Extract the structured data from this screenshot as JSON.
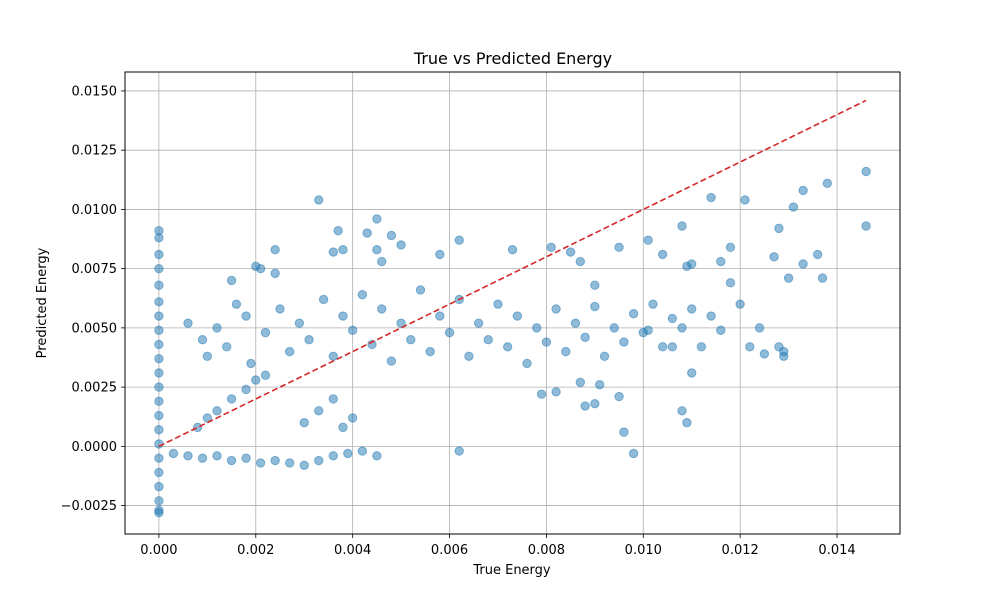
{
  "chart_data": {
    "type": "scatter",
    "title": "True vs Predicted Energy",
    "xlabel": "True Energy",
    "ylabel": "Predicted Energy",
    "xlim": [
      -0.0007,
      0.0153
    ],
    "ylim": [
      -0.0037,
      0.0158
    ],
    "xticks": [
      0,
      0.002,
      0.004,
      0.006,
      0.008,
      0.01,
      0.012,
      0.014
    ],
    "xtick_labels": [
      "0.000",
      "0.002",
      "0.004",
      "0.006",
      "0.008",
      "0.010",
      "0.012",
      "0.014"
    ],
    "yticks": [
      -0.0025,
      0,
      0.0025,
      0.005,
      0.0075,
      0.01,
      0.0125,
      0.015
    ],
    "ytick_labels": [
      "−0.0025",
      "0.0000",
      "0.0025",
      "0.0050",
      "0.0075",
      "0.0100",
      "0.0125",
      "0.0150"
    ],
    "grid": true,
    "point_color": "#1f77b4",
    "point_alpha": 0.5,
    "reference_line": {
      "x": [
        0,
        0.0146
      ],
      "y": [
        0,
        0.0146
      ],
      "color": "#d62728",
      "style": "dashed"
    },
    "series": [
      {
        "points": [
          [
            0.0,
            0.0091
          ],
          [
            0.0,
            0.0088
          ],
          [
            0.0,
            0.0081
          ],
          [
            0.0,
            0.0075
          ],
          [
            0.0,
            0.0068
          ],
          [
            0.0,
            0.0061
          ],
          [
            0.0,
            0.0055
          ],
          [
            0.0,
            0.0049
          ],
          [
            0.0,
            0.0043
          ],
          [
            0.0,
            0.0037
          ],
          [
            0.0,
            0.0031
          ],
          [
            0.0,
            0.0025
          ],
          [
            0.0,
            0.0019
          ],
          [
            0.0,
            0.0013
          ],
          [
            0.0,
            0.0007
          ],
          [
            0.0,
            0.0001
          ],
          [
            0.0,
            -0.0005
          ],
          [
            0.0,
            -0.0011
          ],
          [
            0.0,
            -0.0017
          ],
          [
            0.0,
            -0.0023
          ],
          [
            0.0,
            -0.0027
          ],
          [
            0.0,
            -0.0028
          ],
          [
            0.0003,
            -0.0003
          ],
          [
            0.0006,
            -0.0004
          ],
          [
            0.0009,
            -0.0005
          ],
          [
            0.0012,
            -0.0004
          ],
          [
            0.0015,
            -0.0006
          ],
          [
            0.0018,
            -0.0005
          ],
          [
            0.0021,
            -0.0007
          ],
          [
            0.0024,
            -0.0006
          ],
          [
            0.0027,
            -0.0007
          ],
          [
            0.003,
            -0.0008
          ],
          [
            0.0033,
            -0.0006
          ],
          [
            0.0036,
            -0.0004
          ],
          [
            0.0039,
            -0.0003
          ],
          [
            0.0042,
            -0.0002
          ],
          [
            0.0045,
            -0.0004
          ],
          [
            0.0008,
            0.0008
          ],
          [
            0.001,
            0.0012
          ],
          [
            0.0012,
            0.0015
          ],
          [
            0.0015,
            0.002
          ],
          [
            0.0018,
            0.0024
          ],
          [
            0.002,
            0.0028
          ],
          [
            0.0022,
            0.003
          ],
          [
            0.003,
            0.001
          ],
          [
            0.0033,
            0.0015
          ],
          [
            0.0036,
            0.002
          ],
          [
            0.0038,
            0.0008
          ],
          [
            0.004,
            0.0012
          ],
          [
            0.0015,
            0.007
          ],
          [
            0.002,
            0.0076
          ],
          [
            0.0021,
            0.0075
          ],
          [
            0.0024,
            0.0083
          ],
          [
            0.0024,
            0.0073
          ],
          [
            0.0033,
            0.0104
          ],
          [
            0.0036,
            0.0082
          ],
          [
            0.0037,
            0.0091
          ],
          [
            0.0038,
            0.0083
          ],
          [
            0.0043,
            0.009
          ],
          [
            0.0045,
            0.0096
          ],
          [
            0.0045,
            0.0083
          ],
          [
            0.0046,
            0.0078
          ],
          [
            0.0048,
            0.0089
          ],
          [
            0.005,
            0.0085
          ],
          [
            0.0058,
            0.0081
          ],
          [
            0.0062,
            0.0087
          ],
          [
            0.0073,
            0.0083
          ],
          [
            0.0081,
            0.0084
          ],
          [
            0.0085,
            0.0082
          ],
          [
            0.0006,
            0.0052
          ],
          [
            0.0009,
            0.0045
          ],
          [
            0.001,
            0.0038
          ],
          [
            0.0012,
            0.005
          ],
          [
            0.0014,
            0.0042
          ],
          [
            0.0016,
            0.006
          ],
          [
            0.0018,
            0.0055
          ],
          [
            0.0019,
            0.0035
          ],
          [
            0.0022,
            0.0048
          ],
          [
            0.0025,
            0.0058
          ],
          [
            0.0027,
            0.004
          ],
          [
            0.0029,
            0.0052
          ],
          [
            0.0031,
            0.0045
          ],
          [
            0.0034,
            0.0062
          ],
          [
            0.0036,
            0.0038
          ],
          [
            0.0038,
            0.0055
          ],
          [
            0.004,
            0.0049
          ],
          [
            0.0042,
            0.0064
          ],
          [
            0.0044,
            0.0043
          ],
          [
            0.0046,
            0.0058
          ],
          [
            0.0048,
            0.0036
          ],
          [
            0.005,
            0.0052
          ],
          [
            0.0052,
            0.0045
          ],
          [
            0.0054,
            0.0066
          ],
          [
            0.0056,
            0.004
          ],
          [
            0.0058,
            0.0055
          ],
          [
            0.006,
            0.0048
          ],
          [
            0.0062,
            0.0062
          ],
          [
            0.0064,
            0.0038
          ],
          [
            0.0066,
            0.0052
          ],
          [
            0.0068,
            0.0045
          ],
          [
            0.007,
            0.006
          ],
          [
            0.0072,
            0.0042
          ],
          [
            0.0074,
            0.0055
          ],
          [
            0.0076,
            0.0035
          ],
          [
            0.0078,
            0.005
          ],
          [
            0.008,
            0.0044
          ],
          [
            0.0082,
            0.0058
          ],
          [
            0.0084,
            0.004
          ],
          [
            0.0086,
            0.0052
          ],
          [
            0.0088,
            0.0046
          ],
          [
            0.009,
            0.0059
          ],
          [
            0.0092,
            0.0038
          ],
          [
            0.0094,
            0.005
          ],
          [
            0.0096,
            0.0044
          ],
          [
            0.0098,
            0.0056
          ],
          [
            0.01,
            0.0048
          ],
          [
            0.0102,
            0.006
          ],
          [
            0.0104,
            0.0042
          ],
          [
            0.0106,
            0.0054
          ],
          [
            0.0108,
            0.005
          ],
          [
            0.011,
            0.0058
          ],
          [
            0.0112,
            0.0042
          ],
          [
            0.0114,
            0.0055
          ],
          [
            0.0116,
            0.0049
          ],
          [
            0.0118,
            0.0069
          ],
          [
            0.012,
            0.006
          ],
          [
            0.0122,
            0.0042
          ],
          [
            0.0124,
            0.005
          ],
          [
            0.0125,
            0.0039
          ],
          [
            0.0128,
            0.0042
          ],
          [
            0.0129,
            0.0038
          ],
          [
            0.0129,
            0.004
          ],
          [
            0.0087,
            0.0078
          ],
          [
            0.009,
            0.0068
          ],
          [
            0.0095,
            0.0084
          ],
          [
            0.0101,
            0.0087
          ],
          [
            0.0104,
            0.0081
          ],
          [
            0.0108,
            0.0093
          ],
          [
            0.0109,
            0.0076
          ],
          [
            0.011,
            0.0077
          ],
          [
            0.0114,
            0.0105
          ],
          [
            0.0116,
            0.0078
          ],
          [
            0.0118,
            0.0084
          ],
          [
            0.0121,
            0.0104
          ],
          [
            0.0127,
            0.008
          ],
          [
            0.0128,
            0.0092
          ],
          [
            0.013,
            0.0071
          ],
          [
            0.0131,
            0.0101
          ],
          [
            0.0133,
            0.0108
          ],
          [
            0.0133,
            0.0077
          ],
          [
            0.0136,
            0.0081
          ],
          [
            0.0137,
            0.0071
          ],
          [
            0.0138,
            0.0111
          ],
          [
            0.0146,
            0.0116
          ],
          [
            0.0146,
            0.0093
          ],
          [
            0.0062,
            -0.0002
          ],
          [
            0.0091,
            0.0026
          ],
          [
            0.0095,
            0.0021
          ],
          [
            0.0096,
            0.0006
          ],
          [
            0.0098,
            -0.0003
          ],
          [
            0.0108,
            0.0015
          ],
          [
            0.0109,
            0.001
          ],
          [
            0.011,
            0.0031
          ],
          [
            0.009,
            0.0018
          ],
          [
            0.0088,
            0.0017
          ],
          [
            0.0079,
            0.0022
          ],
          [
            0.0082,
            0.0023
          ],
          [
            0.0087,
            0.0027
          ],
          [
            0.0101,
            0.0049
          ],
          [
            0.0106,
            0.0042
          ]
        ]
      }
    ]
  }
}
